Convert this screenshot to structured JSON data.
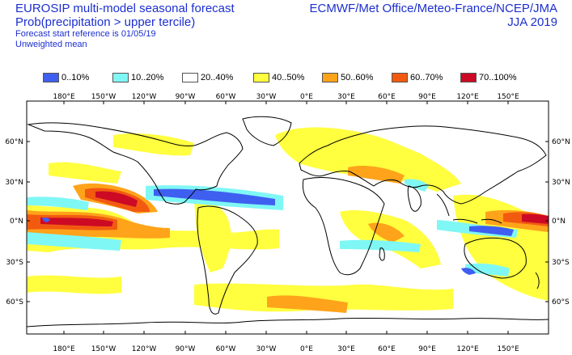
{
  "header": {
    "title_line1": "EUROSIP multi-model seasonal forecast",
    "title_line2": "Prob(precipitation > upper tercile)",
    "title_line3": "Forecast start reference is 01/05/19",
    "title_line4": "Unweighted mean",
    "centres": "ECMWF/Met Office/Meteo-France/NCEP/JMA",
    "season": "JJA 2019"
  },
  "legend": [
    {
      "label": "0..10%",
      "color": "#3f5ff0"
    },
    {
      "label": "10..20%",
      "color": "#7ff7f5"
    },
    {
      "label": "20..40%",
      "color": "#ffffff"
    },
    {
      "label": "40..50%",
      "color": "#ffff3f"
    },
    {
      "label": "50..60%",
      "color": "#ffa31a"
    },
    {
      "label": "60..70%",
      "color": "#f25a10"
    },
    {
      "label": "70..100%",
      "color": "#cc0a25"
    }
  ],
  "axes": {
    "lon_labels": [
      "180°E",
      "150°W",
      "120°W",
      "90°W",
      "60°W",
      "30°W",
      "0°E",
      "30°E",
      "60°E",
      "90°E",
      "120°E",
      "150°E"
    ],
    "lat_labels": [
      "60°N",
      "30°N",
      "0°N",
      "30°S",
      "60°S"
    ]
  }
}
